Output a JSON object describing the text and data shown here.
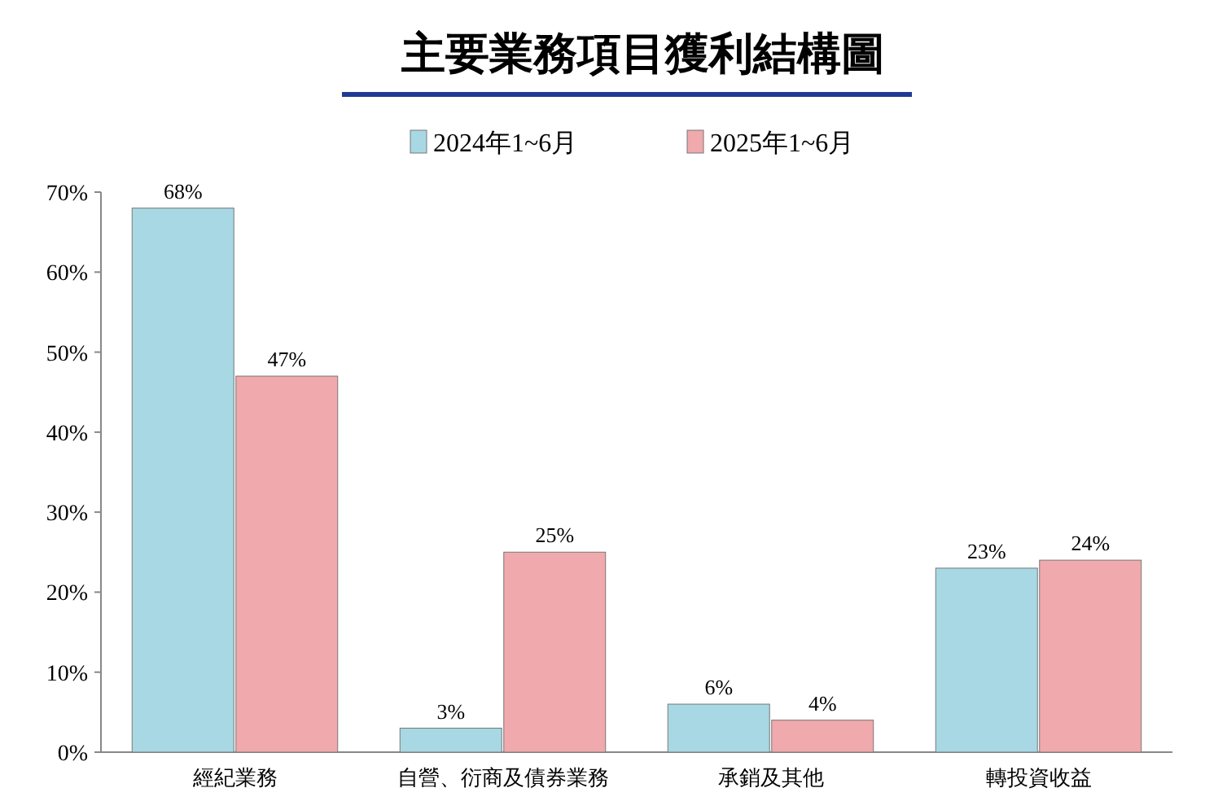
{
  "chart_data": {
    "type": "bar",
    "title": "主要業務項目獲利結構圖",
    "categories": [
      "經紀業務",
      "自營、衍商及債券業務",
      "承銷及其他",
      "轉投資收益"
    ],
    "series": [
      {
        "name": "2024年1~6月",
        "color": "#a8d8e3",
        "values": [
          68,
          3,
          6,
          23
        ],
        "value_labels": [
          "68%",
          "3%",
          "6%",
          "23%"
        ]
      },
      {
        "name": "2025年1~6月",
        "color": "#f0a9ad",
        "values": [
          47,
          25,
          4,
          24
        ],
        "value_labels": [
          "47%",
          "25%",
          "4%",
          "24%"
        ]
      }
    ],
    "ylim": [
      0,
      70
    ],
    "yticks": [
      {
        "value": 0,
        "label": "0%"
      },
      {
        "value": 10,
        "label": "10%"
      },
      {
        "value": 20,
        "label": "20%"
      },
      {
        "value": 30,
        "label": "30%"
      },
      {
        "value": 40,
        "label": "40%"
      },
      {
        "value": 50,
        "label": "50%"
      },
      {
        "value": 60,
        "label": "60%"
      },
      {
        "value": 70,
        "label": "70%"
      }
    ],
    "legend": "top",
    "grid": false
  }
}
